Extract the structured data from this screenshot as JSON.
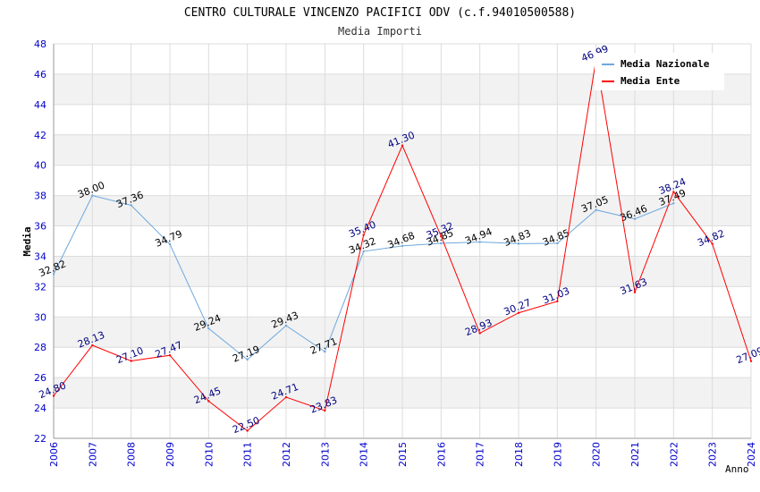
{
  "chart_data": {
    "type": "line",
    "title": "CENTRO CULTURALE VINCENZO PACIFICI ODV (c.f.94010500588)",
    "subtitle": "Media Importi",
    "xlabel": "Anno",
    "ylabel": "Media",
    "ylim": [
      22,
      48
    ],
    "yticks": [
      "22",
      "24",
      "26",
      "28",
      "30",
      "32",
      "34",
      "36",
      "38",
      "40",
      "42",
      "44",
      "46",
      "48"
    ],
    "x": [
      "2006",
      "2007",
      "2008",
      "2009",
      "2010",
      "2011",
      "2012",
      "2013",
      "2014",
      "2015",
      "2016",
      "2017",
      "2018",
      "2019",
      "2020",
      "2021",
      "2022",
      "2023",
      "2024"
    ],
    "legend_position": "top-right",
    "grid": true,
    "series": [
      {
        "name": "Media Nazionale",
        "color": "#6fa8dc",
        "label_color": "#000000",
        "values": [
          32.82,
          38.0,
          37.36,
          34.79,
          29.24,
          27.19,
          29.43,
          27.71,
          34.32,
          34.68,
          34.85,
          34.94,
          34.83,
          34.85,
          37.05,
          36.46,
          37.49,
          null,
          null
        ],
        "labels": [
          "32.82",
          "38.00",
          "37.36",
          "34.79",
          "29.24",
          "27.19",
          "29.43",
          "27.71",
          "34.32",
          "34.68",
          "34.85",
          "34.94",
          "34.83",
          "34.85",
          "37.05",
          "36.46",
          "37.49",
          null,
          null
        ]
      },
      {
        "name": "Media Ente",
        "color": "#ff0000",
        "label_color": "#000080",
        "values": [
          24.8,
          28.13,
          27.1,
          27.47,
          24.45,
          22.5,
          24.71,
          23.83,
          35.4,
          41.3,
          35.32,
          28.93,
          30.27,
          31.03,
          46.99,
          31.63,
          38.24,
          34.82,
          27.09
        ],
        "labels": [
          "24.80",
          "28.13",
          "27.10",
          "27.47",
          "24.45",
          "22.50",
          "24.71",
          "23.83",
          "35.40",
          "41.30",
          "35.32",
          "28.93",
          "30.27",
          "31.03",
          "46.99",
          "31.63",
          "38.24",
          "34.82",
          "27.09"
        ]
      }
    ]
  }
}
